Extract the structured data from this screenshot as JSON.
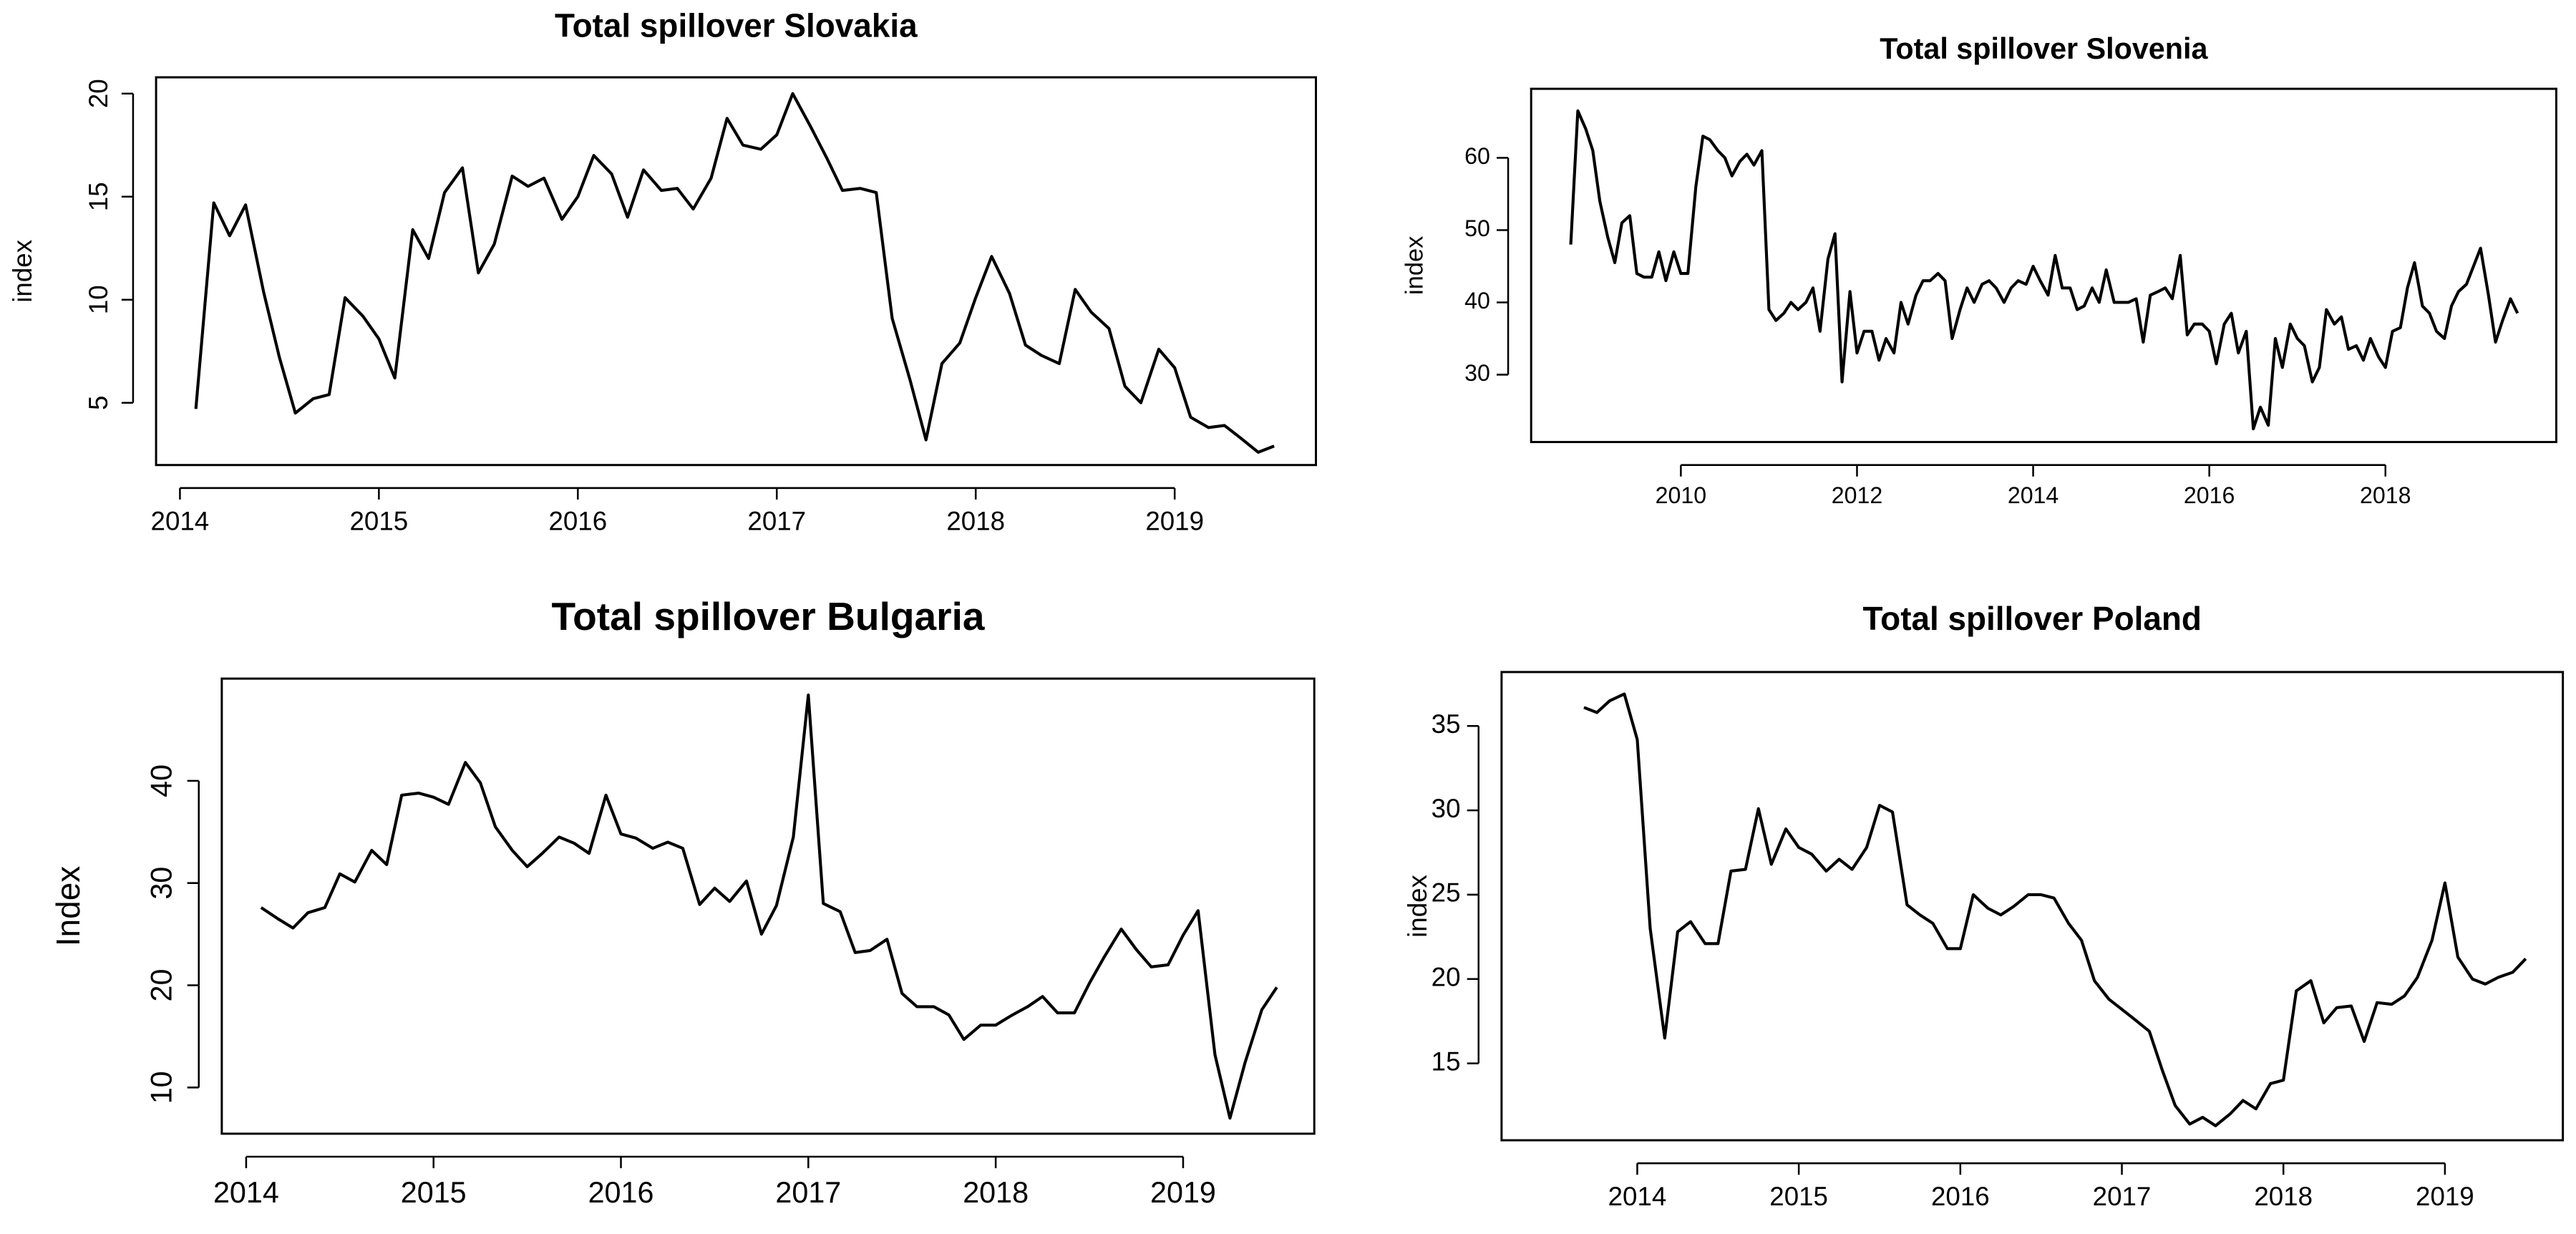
{
  "chart_data": [
    {
      "type": "line",
      "title": "Total spillover Slovakia",
      "y_label": "index",
      "color": "#000000",
      "x": [
        2014.08,
        2014.17,
        2014.25,
        2014.33,
        2014.42,
        2014.5,
        2014.58,
        2014.67,
        2014.75,
        2014.83,
        2014.92,
        2015,
        2015.08,
        2015.17,
        2015.25,
        2015.33,
        2015.42,
        2015.5,
        2015.58,
        2015.67,
        2015.75,
        2015.83,
        2015.92,
        2016,
        2016.08,
        2016.17,
        2016.25,
        2016.33,
        2016.42,
        2016.5,
        2016.58,
        2016.67,
        2016.75,
        2016.83,
        2016.92,
        2017,
        2017.08,
        2017.17,
        2017.25,
        2017.33,
        2017.42,
        2017.5,
        2017.58,
        2017.67,
        2017.75,
        2017.83,
        2017.92,
        2018,
        2018.08,
        2018.17,
        2018.25,
        2018.33,
        2018.42,
        2018.5,
        2018.58,
        2018.67,
        2018.75,
        2018.83,
        2018.92,
        2019,
        2019.08,
        2019.17,
        2019.25,
        2019.33,
        2019.42,
        2019.5
      ],
      "values": [
        4.7,
        14.7,
        13.1,
        14.6,
        10.4,
        7.2,
        4.5,
        5.2,
        5.4,
        10.1,
        9.2,
        8.1,
        6.2,
        13.4,
        12.0,
        15.2,
        16.4,
        11.3,
        12.7,
        16.0,
        15.5,
        15.9,
        13.9,
        15.0,
        17.0,
        16.1,
        14.0,
        16.3,
        15.3,
        15.4,
        14.4,
        15.9,
        18.8,
        17.5,
        17.3,
        18.0,
        20.0,
        18.4,
        16.9,
        15.3,
        15.4,
        15.2,
        9.1,
        6.1,
        3.2,
        6.9,
        7.9,
        10.1,
        12.1,
        10.3,
        7.8,
        7.3,
        6.9,
        10.5,
        9.4,
        8.6,
        5.8,
        5.0,
        7.6,
        6.7,
        4.3,
        3.8,
        3.9,
        3.3,
        2.6,
        2.9
      ],
      "xlim": [
        2013.88,
        2019.71
      ],
      "ylim": [
        1.98,
        20.79
      ],
      "xticks": [
        2014,
        2015,
        2016,
        2017,
        2018,
        2019
      ],
      "yticks": [
        5,
        10,
        15,
        20
      ]
    },
    {
      "type": "line",
      "title": "Total spillover Slovenia",
      "y_label": "index",
      "color": "#000000",
      "x": [
        2008.75,
        2008.83,
        2008.92,
        2009,
        2009.08,
        2009.17,
        2009.25,
        2009.33,
        2009.42,
        2009.5,
        2009.58,
        2009.67,
        2009.75,
        2009.83,
        2009.92,
        2010,
        2010.08,
        2010.17,
        2010.25,
        2010.33,
        2010.42,
        2010.5,
        2010.58,
        2010.67,
        2010.75,
        2010.83,
        2010.92,
        2011,
        2011.08,
        2011.17,
        2011.25,
        2011.33,
        2011.42,
        2011.5,
        2011.58,
        2011.67,
        2011.75,
        2011.83,
        2011.92,
        2012,
        2012.08,
        2012.17,
        2012.25,
        2012.33,
        2012.42,
        2012.5,
        2012.58,
        2012.67,
        2012.75,
        2012.83,
        2012.92,
        2013,
        2013.08,
        2013.17,
        2013.25,
        2013.33,
        2013.42,
        2013.5,
        2013.58,
        2013.67,
        2013.75,
        2013.83,
        2013.92,
        2014,
        2014.08,
        2014.17,
        2014.25,
        2014.33,
        2014.42,
        2014.5,
        2014.58,
        2014.67,
        2014.75,
        2014.83,
        2014.92,
        2015,
        2015.08,
        2015.17,
        2015.25,
        2015.33,
        2015.42,
        2015.5,
        2015.58,
        2015.67,
        2015.75,
        2015.83,
        2015.92,
        2016,
        2016.08,
        2016.17,
        2016.25,
        2016.33,
        2016.42,
        2016.5,
        2016.58,
        2016.67,
        2016.75,
        2016.83,
        2016.92,
        2017,
        2017.08,
        2017.17,
        2017.25,
        2017.33,
        2017.42,
        2017.5,
        2017.58,
        2017.67,
        2017.75,
        2017.83,
        2017.92,
        2018,
        2018.08,
        2018.17,
        2018.25,
        2018.33,
        2018.42,
        2018.5,
        2018.58,
        2018.67,
        2018.75,
        2018.83,
        2018.92,
        2019,
        2019.08,
        2019.17,
        2019.25,
        2019.33,
        2019.42,
        2019.5
      ],
      "values": [
        48,
        66.5,
        64,
        61,
        54,
        49,
        45.5,
        51,
        52,
        44,
        43.5,
        43.5,
        47,
        43,
        47,
        44,
        44,
        56,
        63,
        62.5,
        61,
        60,
        57.5,
        59.5,
        60.5,
        59,
        61,
        39,
        37.5,
        38.5,
        40,
        39,
        40,
        42,
        36,
        46,
        49.5,
        29,
        41.5,
        33,
        36,
        36,
        32,
        35,
        33,
        40,
        37,
        41,
        43,
        43,
        44,
        43,
        35,
        39,
        42,
        40,
        42.5,
        43,
        42,
        40,
        42,
        43,
        42.5,
        45,
        43,
        41,
        46.5,
        42,
        42,
        39,
        39.5,
        42,
        40,
        44.5,
        40,
        40,
        40,
        40.5,
        34.5,
        41,
        41.5,
        42,
        40.5,
        46.5,
        35.5,
        37,
        37,
        36,
        31.5,
        37,
        38.5,
        33,
        36,
        22.5,
        25.5,
        23,
        35,
        31,
        37,
        35,
        34,
        29,
        31,
        39,
        37,
        38,
        33.5,
        34,
        32,
        35,
        32.5,
        31,
        36,
        36.5,
        42,
        45.5,
        39.5,
        38.5,
        36,
        35,
        39.5,
        41.5,
        42.5,
        45,
        47.5,
        41,
        34.5,
        37.5,
        40.5,
        38.5
      ],
      "xlim": [
        2008.3,
        2019.94
      ],
      "ylim": [
        20.68,
        69.55
      ],
      "xticks": [
        2010,
        2012,
        2014,
        2016,
        2018
      ],
      "yticks": [
        30,
        40,
        50,
        60
      ]
    },
    {
      "type": "line",
      "title": "Total spillover Bulgaria",
      "y_label": "Index",
      "color": "#000000",
      "x": [
        2014.08,
        2014.17,
        2014.25,
        2014.33,
        2014.42,
        2014.5,
        2014.58,
        2014.67,
        2014.75,
        2014.83,
        2014.92,
        2015,
        2015.08,
        2015.17,
        2015.25,
        2015.33,
        2015.42,
        2015.5,
        2015.58,
        2015.67,
        2015.75,
        2015.83,
        2015.92,
        2016,
        2016.08,
        2016.17,
        2016.25,
        2016.33,
        2016.42,
        2016.5,
        2016.58,
        2016.67,
        2016.75,
        2016.83,
        2016.92,
        2017,
        2017.08,
        2017.17,
        2017.25,
        2017.33,
        2017.42,
        2017.5,
        2017.58,
        2017.67,
        2017.75,
        2017.83,
        2017.92,
        2018,
        2018.08,
        2018.17,
        2018.25,
        2018.33,
        2018.42,
        2018.5,
        2018.58,
        2018.67,
        2018.75,
        2018.83,
        2018.92,
        2019,
        2019.08,
        2019.17,
        2019.25,
        2019.33,
        2019.42,
        2019.5
      ],
      "values": [
        27.6,
        26.5,
        25.6,
        27.1,
        27.6,
        30.9,
        30.1,
        33.2,
        31.8,
        38.6,
        38.8,
        38.4,
        37.7,
        41.8,
        39.8,
        35.5,
        33.2,
        31.6,
        32.9,
        34.5,
        33.9,
        32.9,
        38.6,
        34.8,
        34.4,
        33.4,
        34.0,
        33.4,
        27.9,
        29.5,
        28.2,
        30.2,
        25.0,
        27.8,
        34.5,
        48.4,
        28.0,
        27.2,
        23.2,
        23.4,
        24.5,
        19.2,
        17.9,
        17.9,
        17.1,
        14.7,
        16.1,
        16.1,
        17.0,
        17.9,
        18.9,
        17.3,
        17.3,
        20.2,
        22.8,
        25.5,
        23.5,
        21.8,
        22.0,
        24.9,
        27.3,
        13.2,
        7.0,
        12.4,
        17.6,
        19.8
      ],
      "xlim": [
        2013.87,
        2019.7
      ],
      "ylim": [
        5.48,
        50
      ],
      "xticks": [
        2014,
        2015,
        2016,
        2017,
        2018,
        2019
      ],
      "yticks": [
        10,
        20,
        30,
        40
      ]
    },
    {
      "type": "line",
      "title": "Total spillover Poland",
      "y_label": "index",
      "color": "#000000",
      "x": [
        2013.67,
        2013.75,
        2013.83,
        2013.92,
        2014,
        2014.08,
        2014.17,
        2014.25,
        2014.33,
        2014.42,
        2014.5,
        2014.58,
        2014.67,
        2014.75,
        2014.83,
        2014.92,
        2015,
        2015.08,
        2015.17,
        2015.25,
        2015.33,
        2015.42,
        2015.5,
        2015.58,
        2015.67,
        2015.75,
        2015.83,
        2015.92,
        2016,
        2016.08,
        2016.17,
        2016.25,
        2016.33,
        2016.42,
        2016.5,
        2016.58,
        2016.67,
        2016.75,
        2016.83,
        2016.92,
        2017,
        2017.08,
        2017.17,
        2017.25,
        2017.33,
        2017.42,
        2017.5,
        2017.58,
        2017.67,
        2017.75,
        2017.83,
        2017.92,
        2018,
        2018.08,
        2018.17,
        2018.25,
        2018.33,
        2018.42,
        2018.5,
        2018.58,
        2018.67,
        2018.75,
        2018.83,
        2018.92,
        2019,
        2019.08,
        2019.17,
        2019.25,
        2019.33,
        2019.42,
        2019.5
      ],
      "values": [
        36.1,
        35.8,
        36.5,
        36.9,
        34.2,
        23.0,
        16.5,
        22.8,
        23.4,
        22.1,
        22.1,
        26.4,
        26.5,
        30.1,
        26.8,
        28.9,
        27.8,
        27.4,
        26.4,
        27.1,
        26.5,
        27.8,
        30.3,
        29.9,
        24.4,
        23.8,
        23.3,
        21.8,
        21.8,
        25.0,
        24.2,
        23.8,
        24.3,
        25.0,
        25.0,
        24.8,
        23.3,
        22.3,
        19.9,
        18.8,
        18.2,
        17.6,
        16.9,
        14.6,
        12.5,
        11.4,
        11.8,
        11.3,
        12.0,
        12.8,
        12.3,
        13.8,
        14.0,
        19.3,
        19.9,
        17.4,
        18.3,
        18.4,
        16.3,
        18.6,
        18.5,
        19.0,
        20.1,
        22.3,
        25.7,
        21.3,
        20.0,
        19.7,
        20.1,
        20.4,
        21.2
      ],
      "xlim": [
        2013.16,
        2019.73
      ],
      "ylim": [
        10.44,
        38.2
      ],
      "xticks": [
        2014,
        2015,
        2016,
        2017,
        2018,
        2019
      ],
      "yticks": [
        15,
        20,
        25,
        30,
        35
      ]
    }
  ]
}
